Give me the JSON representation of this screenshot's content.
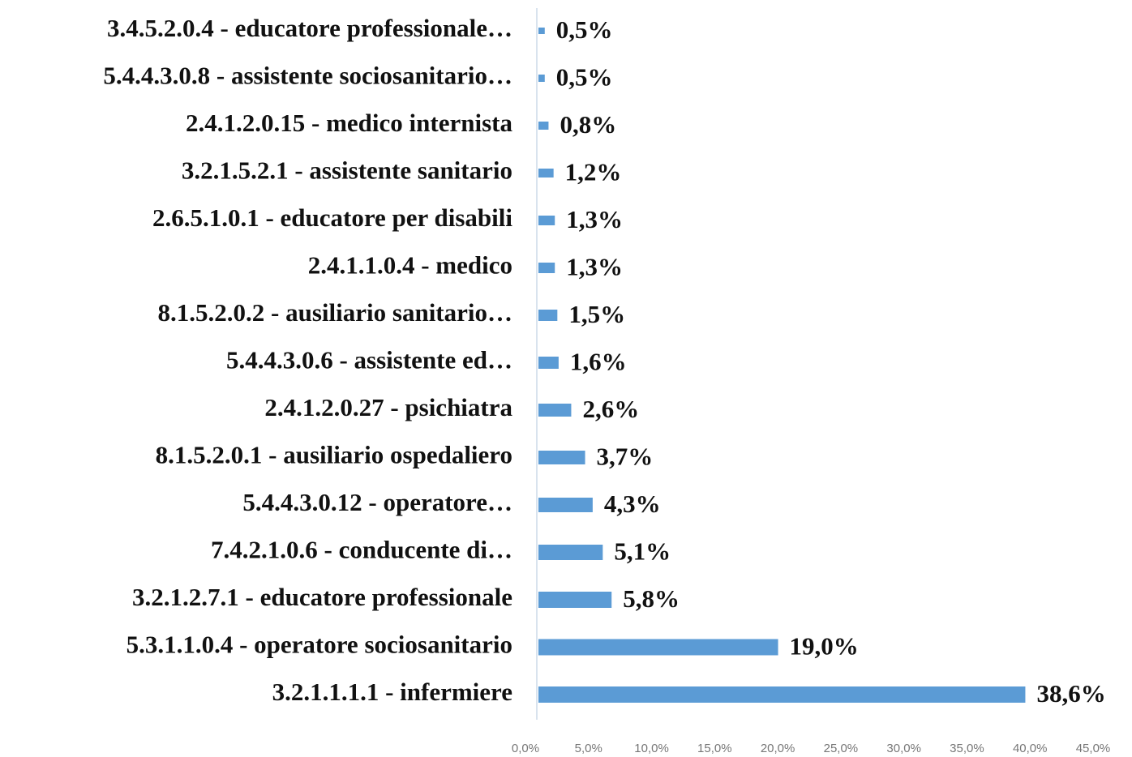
{
  "chart_data": {
    "type": "barh",
    "categories": [
      "3.4.5.2.0.4 - educatore professionale…",
      "5.4.4.3.0.8 - assistente sociosanitario…",
      "2.4.1.2.0.15 - medico internista",
      "3.2.1.5.2.1 - assistente sanitario",
      "2.6.5.1.0.1 - educatore per disabili",
      "2.4.1.1.0.4 - medico",
      "8.1.5.2.0.2 - ausiliario sanitario…",
      "5.4.4.3.0.6 - assistente ed…",
      "2.4.1.2.0.27 - psichiatra",
      "8.1.5.2.0.1 - ausiliario ospedaliero",
      "5.4.4.3.0.12 - operatore…",
      "7.4.2.1.0.6 - conducente di…",
      "3.2.1.2.7.1 - educatore professionale",
      "5.3.1.1.0.4 - operatore sociosanitario",
      "3.2.1.1.1.1 - infermiere"
    ],
    "values": [
      0.5,
      0.5,
      0.8,
      1.2,
      1.3,
      1.3,
      1.5,
      1.6,
      2.6,
      3.7,
      4.3,
      5.1,
      5.8,
      19.0,
      38.6
    ],
    "value_labels": [
      "0,5%",
      "0,5%",
      "0,8%",
      "1,2%",
      "1,3%",
      "1,3%",
      "1,5%",
      "1,6%",
      "2,6%",
      "3,7%",
      "4,3%",
      "5,1%",
      "5,8%",
      "19,0%",
      "38,6%"
    ],
    "color": "#5b9bd5",
    "xlim": [
      0,
      45
    ],
    "xticks": [
      {
        "value": 0,
        "label": "0,0%"
      },
      {
        "value": 5,
        "label": "5,0%"
      },
      {
        "value": 10,
        "label": "10,0%"
      },
      {
        "value": 15,
        "label": "15,0%"
      },
      {
        "value": 20,
        "label": "20,0%"
      },
      {
        "value": 25,
        "label": "25,0%"
      },
      {
        "value": 30,
        "label": "30,0%"
      },
      {
        "value": 35,
        "label": "35,0%"
      },
      {
        "value": 40,
        "label": "40,0%"
      },
      {
        "value": 45,
        "label": "45,0%"
      }
    ]
  }
}
